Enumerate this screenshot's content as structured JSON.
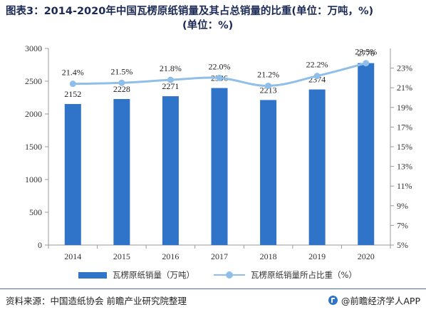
{
  "title": {
    "line1": "图表3：2014-2020年中国瓦楞原纸销量及其占总销量的比重(单位：万吨，%)",
    "line2": "(单位：%)"
  },
  "chart_data": {
    "type": "bar",
    "categories": [
      "2014",
      "2015",
      "2016",
      "2017",
      "2018",
      "2019",
      "2020"
    ],
    "series": [
      {
        "name": "瓦楞原纸销量（万吨）",
        "type": "bar",
        "axis": "left",
        "values": [
          2152,
          2228,
          2271,
          2396,
          2213,
          2374,
          2776
        ],
        "labels": [
          "2152",
          "2228",
          "2271",
          "2396",
          "2213",
          "2374",
          "2776"
        ],
        "color": "#2f74c8"
      },
      {
        "name": "瓦楞原纸销量所占比重（%）",
        "type": "line",
        "axis": "right",
        "values": [
          21.4,
          21.5,
          21.8,
          22.0,
          21.2,
          22.2,
          23.5
        ],
        "labels": [
          "21.4%",
          "21.5%",
          "21.8%",
          "22.0%",
          "21.2%",
          "22.2%",
          "23.5%"
        ],
        "color": "#8fbfe8"
      }
    ],
    "y_left": {
      "range": [
        0,
        3000
      ],
      "ticks": [
        0,
        500,
        1000,
        1500,
        2000,
        2500,
        3000
      ],
      "tick_labels": [
        "0",
        "500",
        "1000",
        "1500",
        "2000",
        "2500",
        "3000"
      ]
    },
    "y_right": {
      "range": [
        5,
        25
      ],
      "ticks": [
        5,
        7,
        9,
        11,
        13,
        15,
        17,
        19,
        21,
        23
      ],
      "tick_labels": [
        "5%",
        "7%",
        "9%",
        "11%",
        "13%",
        "15%",
        "17%",
        "19%",
        "21%",
        "23%"
      ]
    },
    "grid": false,
    "legend_position": "bottom"
  },
  "legend": {
    "bar_label": "瓦楞原纸销量（万吨）",
    "line_label": "瓦楞原纸销量所占比重（%）"
  },
  "footer": {
    "source": "资料来源：中国造纸协会 前瞻产业研究院整理",
    "brand": "@前瞻经济学人APP"
  }
}
